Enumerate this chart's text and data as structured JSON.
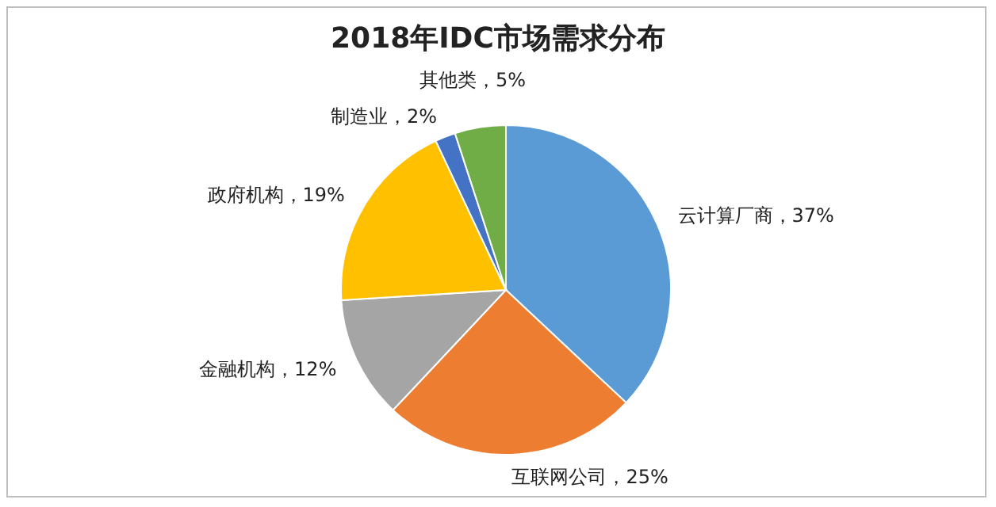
{
  "chart_data": {
    "type": "pie",
    "title": "2018年IDC市场需求分布",
    "categories": [
      "云计算厂商",
      "互联网公司",
      "金融机构",
      "政府机构",
      "制造业",
      "其他类"
    ],
    "values": [
      37,
      25,
      12,
      19,
      2,
      5
    ],
    "value_labels": [
      "37%",
      "25%",
      "12%",
      "19%",
      "2%",
      "5%"
    ],
    "colors": [
      "#5b9bd5",
      "#ed7d31",
      "#a5a5a5",
      "#ffc000",
      "#4472c4",
      "#70ad47"
    ],
    "legend": false
  }
}
